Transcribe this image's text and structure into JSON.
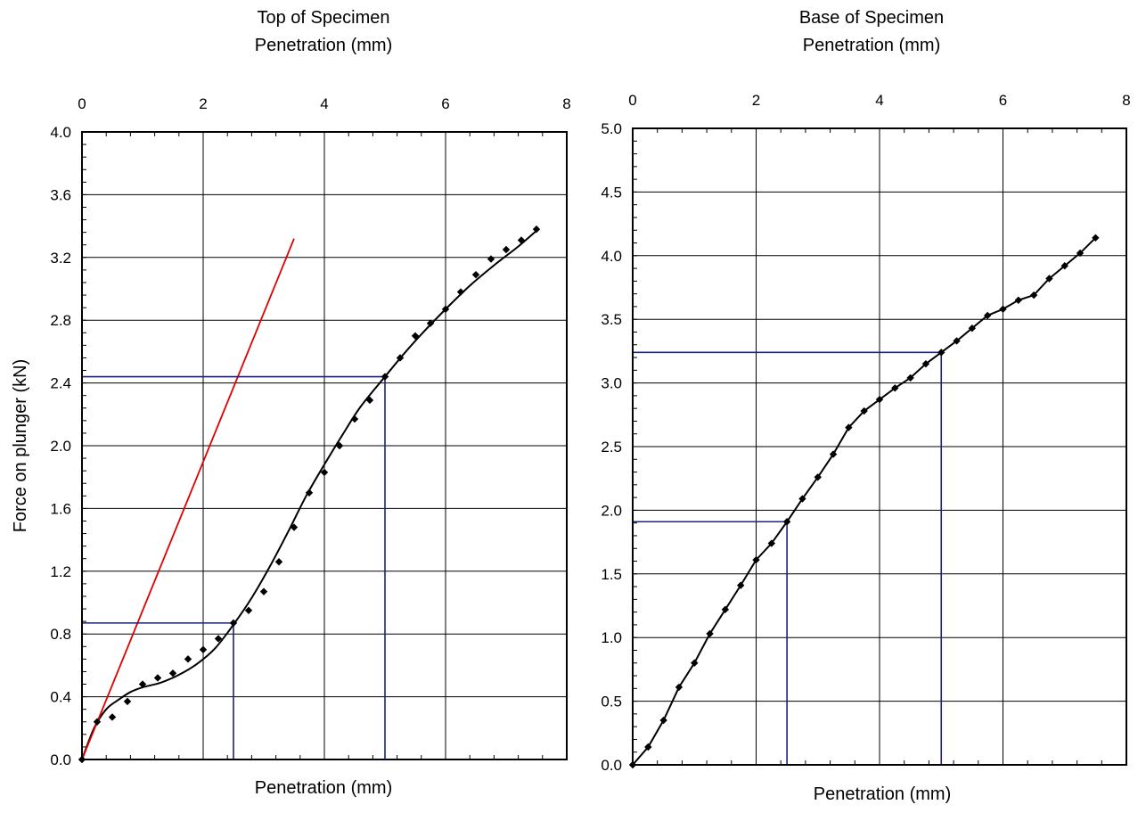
{
  "chart_data": [
    {
      "type": "scatter",
      "title": "Top of Specimen",
      "subtitle": "Penetration (mm)",
      "xlabel": "Penetration (mm)",
      "ylabel": "Force on plunger (kN)",
      "xlim": [
        0,
        8
      ],
      "ylim": [
        0,
        4.0
      ],
      "x_ticks": [
        "0",
        "2",
        "4",
        "6",
        "8"
      ],
      "y_ticks": [
        "0.0",
        "0.4",
        "0.8",
        "1.2",
        "1.6",
        "2.0",
        "2.4",
        "2.8",
        "3.2",
        "3.6",
        "4.0"
      ],
      "x_tick_values": [
        0,
        2,
        4,
        6,
        8
      ],
      "y_tick_values": [
        0,
        0.4,
        0.8,
        1.2,
        1.6,
        2.0,
        2.4,
        2.8,
        3.2,
        3.6,
        4.0
      ],
      "x_axis_position": "top",
      "grid": true,
      "colors": {
        "data": "#000000",
        "fit_curve": "#000000",
        "tangent": "#e00000",
        "reference": "#1a237e"
      },
      "series": [
        {
          "role": "points",
          "x": [
            0.0,
            0.25,
            0.5,
            0.75,
            1.0,
            1.25,
            1.5,
            1.75,
            2.0,
            2.25,
            2.5,
            2.75,
            3.0,
            3.25,
            3.5,
            3.75,
            4.0,
            4.25,
            4.5,
            4.75,
            5.0,
            5.25,
            5.5,
            5.75,
            6.0,
            6.25,
            6.5,
            6.75,
            7.0,
            7.25,
            7.5
          ],
          "y": [
            0.0,
            0.24,
            0.27,
            0.37,
            0.48,
            0.52,
            0.55,
            0.64,
            0.7,
            0.77,
            0.87,
            0.95,
            1.07,
            1.26,
            1.48,
            1.7,
            1.83,
            2.0,
            2.17,
            2.29,
            2.44,
            2.56,
            2.7,
            2.78,
            2.87,
            2.98,
            3.09,
            3.19,
            3.25,
            3.31,
            3.38
          ]
        },
        {
          "role": "fit-curve",
          "x": [
            0.0,
            0.2,
            0.4,
            0.6,
            0.8,
            1.0,
            1.3,
            1.6,
            1.9,
            2.2,
            2.5,
            2.8,
            3.1,
            3.4,
            3.7,
            4.0,
            4.3,
            4.6,
            5.0,
            5.3,
            5.6,
            6.0,
            6.4,
            6.8,
            7.2,
            7.5
          ],
          "y": [
            0.0,
            0.2,
            0.32,
            0.38,
            0.43,
            0.46,
            0.49,
            0.54,
            0.61,
            0.71,
            0.86,
            1.03,
            1.23,
            1.45,
            1.68,
            1.88,
            2.07,
            2.25,
            2.44,
            2.58,
            2.71,
            2.87,
            3.02,
            3.15,
            3.27,
            3.37
          ]
        },
        {
          "role": "tangent",
          "x": [
            0.0,
            3.5
          ],
          "y": [
            0.0,
            3.32
          ]
        },
        {
          "role": "reference",
          "x": [
            0.0,
            2.5,
            2.5
          ],
          "y": [
            0.87,
            0.87,
            0.0
          ]
        },
        {
          "role": "reference",
          "x": [
            0.0,
            5.0,
            5.0
          ],
          "y": [
            2.44,
            2.44,
            0.0
          ]
        }
      ]
    },
    {
      "type": "line",
      "title": "Base of Specimen",
      "subtitle": "Penetration (mm)",
      "xlabel": "Penetration (mm)",
      "ylabel": "",
      "xlim": [
        0,
        8
      ],
      "ylim": [
        0,
        5.0
      ],
      "x_ticks": [
        "0",
        "2",
        "4",
        "6",
        "8"
      ],
      "y_ticks": [
        "0.0",
        "0.5",
        "1.0",
        "1.5",
        "2.0",
        "2.5",
        "3.0",
        "3.5",
        "4.0",
        "4.5",
        "5.0"
      ],
      "x_tick_values": [
        0,
        2,
        4,
        6,
        8
      ],
      "y_tick_values": [
        0,
        0.5,
        1.0,
        1.5,
        2.0,
        2.5,
        3.0,
        3.5,
        4.0,
        4.5,
        5.0
      ],
      "x_axis_position": "top",
      "grid": true,
      "colors": {
        "data": "#000000",
        "reference": "#1a237e"
      },
      "series": [
        {
          "role": "line-markers",
          "x": [
            0.0,
            0.25,
            0.5,
            0.75,
            1.0,
            1.25,
            1.5,
            1.75,
            2.0,
            2.25,
            2.5,
            2.75,
            3.0,
            3.25,
            3.5,
            3.75,
            4.0,
            4.25,
            4.5,
            4.75,
            5.0,
            5.25,
            5.5,
            5.75,
            6.0,
            6.25,
            6.5,
            6.75,
            7.0,
            7.25,
            7.5
          ],
          "y": [
            0.0,
            0.14,
            0.35,
            0.61,
            0.8,
            1.03,
            1.22,
            1.41,
            1.61,
            1.74,
            1.91,
            2.09,
            2.26,
            2.44,
            2.65,
            2.78,
            2.87,
            2.96,
            3.04,
            3.15,
            3.24,
            3.33,
            3.43,
            3.53,
            3.58,
            3.65,
            3.69,
            3.82,
            3.92,
            4.02,
            4.14
          ]
        },
        {
          "role": "reference",
          "x": [
            0.0,
            2.5,
            2.5
          ],
          "y": [
            1.91,
            1.91,
            0.0
          ]
        },
        {
          "role": "reference",
          "x": [
            0.0,
            5.0,
            5.0
          ],
          "y": [
            3.24,
            3.24,
            0.0
          ]
        }
      ]
    }
  ]
}
